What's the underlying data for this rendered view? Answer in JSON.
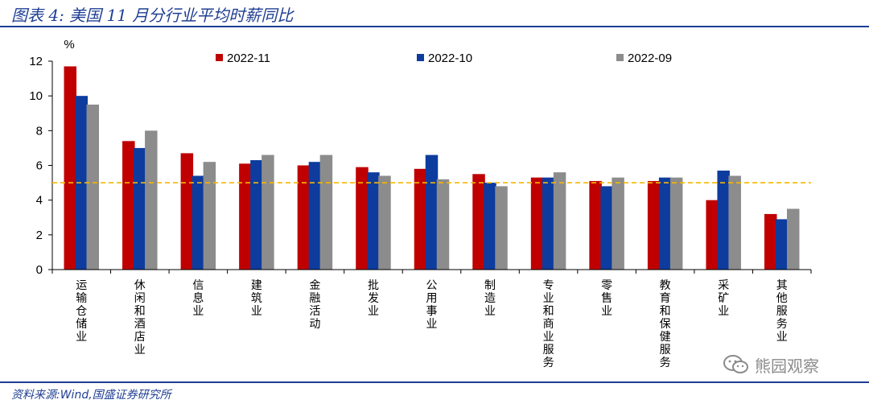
{
  "figure": {
    "title": "图表 4:  美国 11 月分行业平均时薪同比",
    "source": "资料来源:Wind,国盛证券研究所",
    "watermark": "熊园观察"
  },
  "chart_data": {
    "type": "bar",
    "ylabel": "%",
    "ylim": [
      0,
      12
    ],
    "yticks": [
      0,
      2,
      4,
      6,
      8,
      10,
      12
    ],
    "grid": false,
    "legend_position": "top",
    "categories": [
      "运输仓储业",
      "休闲和酒店业",
      "信息业",
      "建筑业",
      "金融活动",
      "批发业",
      "公用事业",
      "制造业",
      "专业和商业服务",
      "零售业",
      "教育和保健服务",
      "采矿业",
      "其他服务业"
    ],
    "series": [
      {
        "name": "2022-11",
        "color": "#c00000",
        "values": [
          11.7,
          7.4,
          6.7,
          6.1,
          6.0,
          5.9,
          5.8,
          5.5,
          5.3,
          5.1,
          5.1,
          4.0,
          3.2
        ]
      },
      {
        "name": "2022-10",
        "color": "#0d3c9e",
        "values": [
          10.0,
          7.0,
          5.4,
          6.3,
          6.2,
          5.6,
          6.6,
          5.0,
          5.3,
          4.8,
          5.3,
          5.7,
          2.9
        ]
      },
      {
        "name": "2022-09",
        "color": "#8c8c8c",
        "values": [
          9.5,
          8.0,
          6.2,
          6.6,
          6.6,
          5.4,
          5.2,
          4.8,
          5.6,
          5.3,
          5.3,
          5.4,
          3.5
        ]
      }
    ],
    "reference_line": {
      "value": 5.0,
      "color": "#f5b800"
    }
  }
}
